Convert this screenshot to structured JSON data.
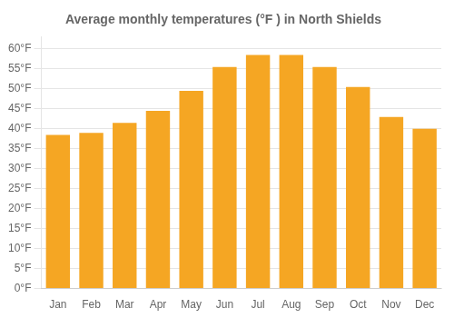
{
  "chart_data": {
    "type": "bar",
    "title": "Average monthly temperatures (°F ) in North Shields",
    "categories": [
      "Jan",
      "Feb",
      "Mar",
      "Apr",
      "May",
      "Jun",
      "Jul",
      "Aug",
      "Sep",
      "Oct",
      "Nov",
      "Dec"
    ],
    "values": [
      38.5,
      39.0,
      41.5,
      44.5,
      49.5,
      55.5,
      58.5,
      58.5,
      55.5,
      50.5,
      43.0,
      40.0
    ],
    "color": "#F5A623",
    "ylim": [
      0,
      63
    ],
    "yticks": [
      {
        "value": 0,
        "label": "0°F"
      },
      {
        "value": 5,
        "label": "5°F"
      },
      {
        "value": 10,
        "label": "10°F"
      },
      {
        "value": 15,
        "label": "15°F"
      },
      {
        "value": 20,
        "label": "20°F"
      },
      {
        "value": 25,
        "label": "25°F"
      },
      {
        "value": 30,
        "label": "30°F"
      },
      {
        "value": 35,
        "label": "35°F"
      },
      {
        "value": 40,
        "label": "40°F"
      },
      {
        "value": 45,
        "label": "45°F"
      },
      {
        "value": 50,
        "label": "50°F"
      },
      {
        "value": 55,
        "label": "55°F"
      },
      {
        "value": 60,
        "label": "60°F"
      }
    ],
    "grid": true
  }
}
